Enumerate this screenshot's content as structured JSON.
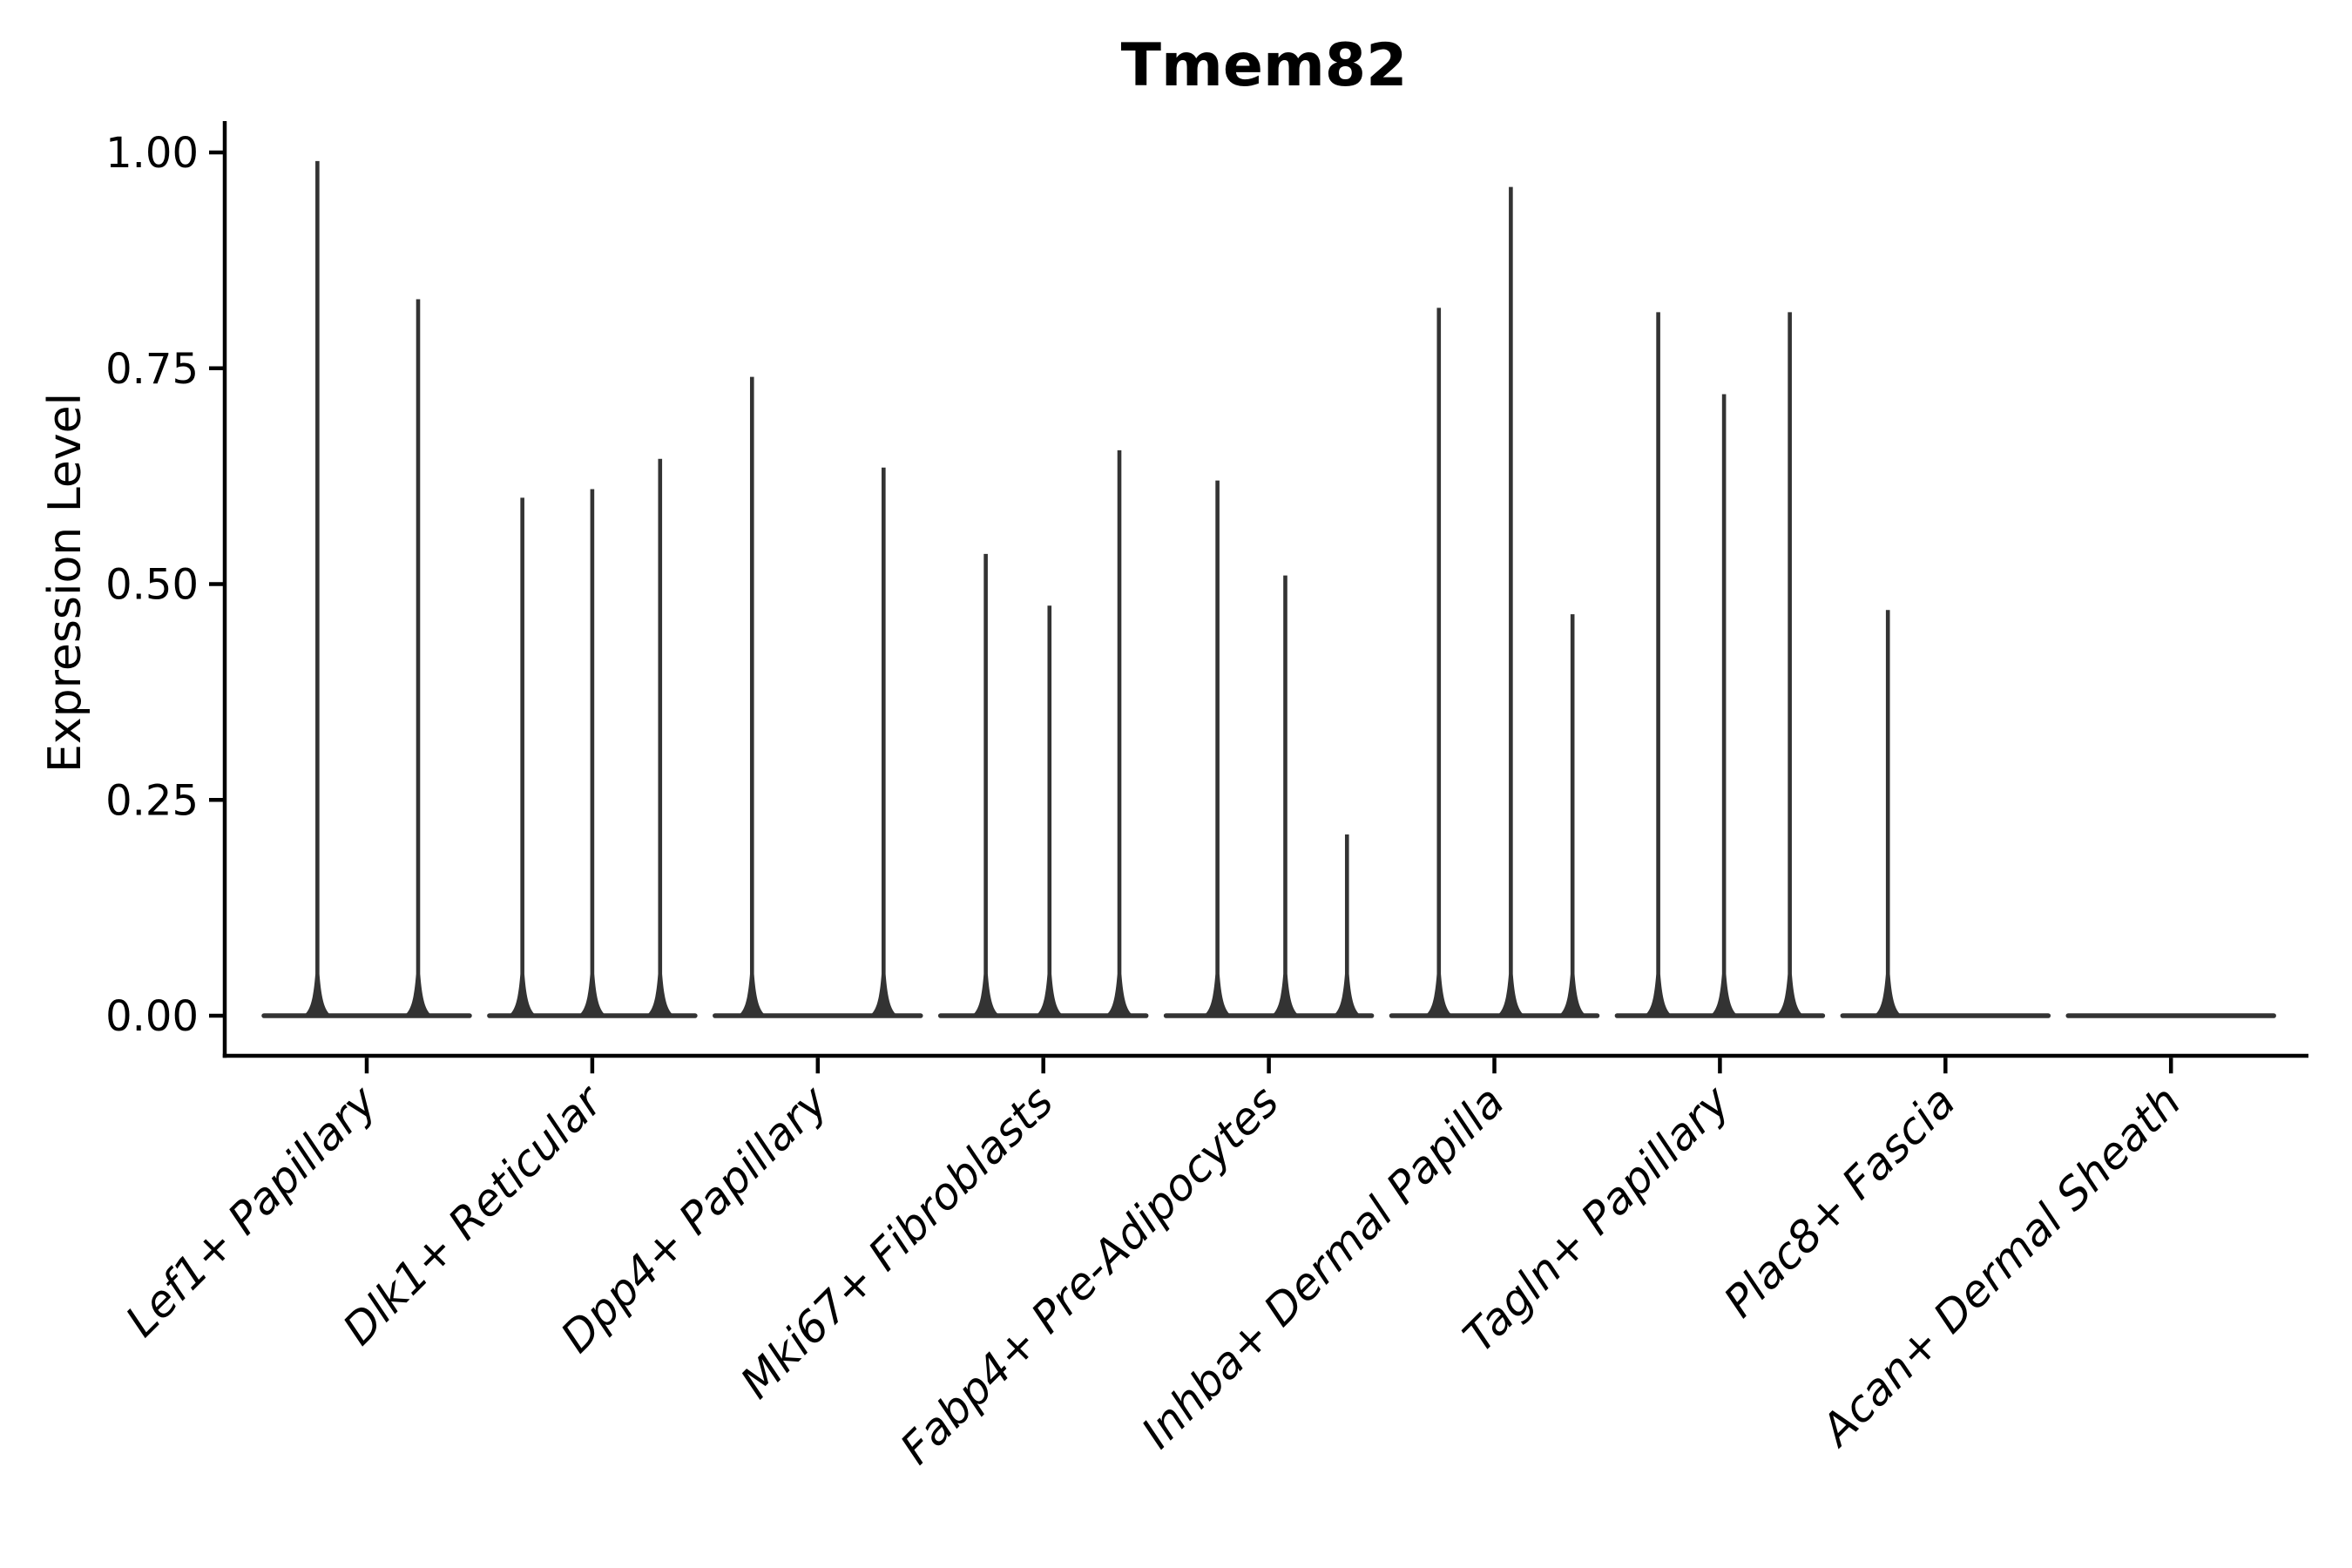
{
  "chart_data": {
    "type": "violin",
    "title": "Tmem82",
    "ylabel": "Expression Level",
    "xlabel": "",
    "ylim": [
      0,
      1.05
    ],
    "yticks": [
      0,
      0.25,
      0.5,
      0.75,
      1.0
    ],
    "ytick_labels": [
      "0.00",
      "0.25",
      "0.50",
      "0.75",
      "1.00"
    ],
    "grid": false,
    "legend": "none",
    "categories": [
      "Lef1+ Papillary",
      "Dlk1+ Reticular",
      "Dpp4+ Papillary",
      "Mki67+ Fibroblasts",
      "Fabp4+ Pre-Adipocytes",
      "Inhba+ Dermal Papilla",
      "Tagln+ Papillary",
      "Plac8+ Fascia",
      "Acan+ Dermal Sheath"
    ],
    "series": [
      {
        "category": "Lef1+ Papillary",
        "spikes": [
          {
            "pos": 0.26,
            "value": 0.99
          },
          {
            "pos": 0.75,
            "value": 0.83
          }
        ]
      },
      {
        "category": "Dlk1+ Reticular",
        "spikes": [
          {
            "pos": 0.16,
            "value": 0.6
          },
          {
            "pos": 0.5,
            "value": 0.61
          },
          {
            "pos": 0.83,
            "value": 0.645
          }
        ]
      },
      {
        "category": "Dpp4+ Papillary",
        "spikes": [
          {
            "pos": 0.18,
            "value": 0.74
          },
          {
            "pos": 0.82,
            "value": 0.635
          }
        ]
      },
      {
        "category": "Mki67+ Fibroblasts",
        "spikes": [
          {
            "pos": 0.22,
            "value": 0.535
          },
          {
            "pos": 0.53,
            "value": 0.475
          },
          {
            "pos": 0.87,
            "value": 0.655
          }
        ]
      },
      {
        "category": "Fabp4+ Pre-Adipocytes",
        "spikes": [
          {
            "pos": 0.25,
            "value": 0.62
          },
          {
            "pos": 0.58,
            "value": 0.51
          },
          {
            "pos": 0.88,
            "value": 0.21
          }
        ]
      },
      {
        "category": "Inhba+ Dermal Papilla",
        "spikes": [
          {
            "pos": 0.23,
            "value": 0.82
          },
          {
            "pos": 0.58,
            "value": 0.96
          },
          {
            "pos": 0.88,
            "value": 0.465
          }
        ]
      },
      {
        "category": "Tagln+ Papillary",
        "spikes": [
          {
            "pos": 0.2,
            "value": 0.815
          },
          {
            "pos": 0.52,
            "value": 0.72
          },
          {
            "pos": 0.84,
            "value": 0.815
          }
        ]
      },
      {
        "category": "Plac8+ Fascia",
        "spikes": [
          {
            "pos": 0.22,
            "value": 0.47
          }
        ]
      },
      {
        "category": "Acan+ Dermal Sheath",
        "spikes": []
      }
    ],
    "colors": {
      "violin": "#333333",
      "axis": "#000000",
      "text": "#000000",
      "background": "#ffffff"
    }
  }
}
